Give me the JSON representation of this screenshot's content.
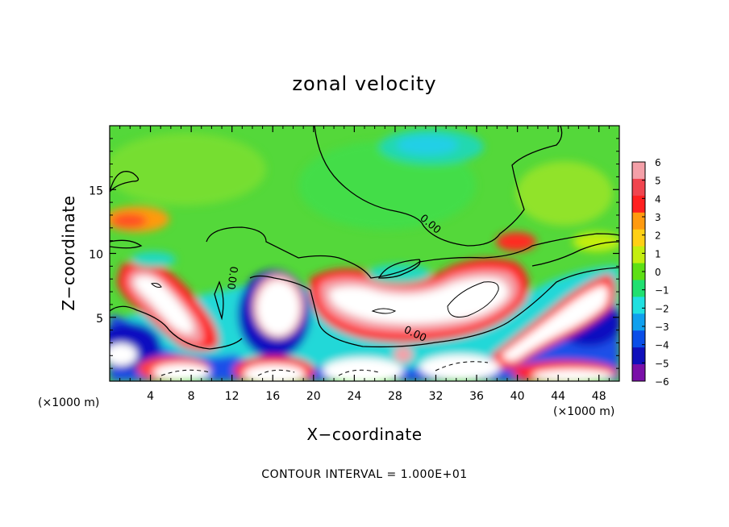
{
  "chart_data": {
    "type": "heatmap",
    "title": "zonal velocity",
    "xlabel": "X−coordinate",
    "ylabel": "Z−coordinate",
    "x_unit": "(×1000 m)",
    "y_unit": "(×1000 m)",
    "xlim": [
      0,
      50
    ],
    "ylim": [
      0,
      20
    ],
    "x_ticks": [
      4,
      8,
      12,
      16,
      20,
      24,
      28,
      32,
      36,
      40,
      44,
      48
    ],
    "y_ticks": [
      5,
      10,
      15
    ],
    "colorbar": {
      "min": -6,
      "max": 6,
      "ticks": [
        6,
        5,
        4,
        3,
        2,
        1,
        0,
        -1,
        -2,
        -3,
        -4,
        -5,
        -6
      ],
      "tick_labels": [
        "6",
        "5",
        "4",
        "3",
        "2",
        "1",
        "0",
        "−1",
        "−2",
        "−3",
        "−4",
        "−5",
        "−6"
      ],
      "colors": [
        "#f4a0a8",
        "#f0454f",
        "#ff2020",
        "#ff9a10",
        "#ffd015",
        "#c4ee10",
        "#5ee015",
        "#20e070",
        "#20e0e0",
        "#10a0ee",
        "#0a4ee8",
        "#1010bb",
        "#7a10a8"
      ]
    },
    "contour_interval": 10,
    "contour_labels": [
      "0.00",
      "0.00",
      "0.00"
    ],
    "footer": "CONTOUR INTERVAL = 1.000E+01",
    "field_features": [
      {
        "kind": "positive",
        "x": [
          0.5,
          10
        ],
        "z": [
          2,
          9.5
        ]
      },
      {
        "kind": "positive",
        "x": [
          0.5,
          7
        ],
        "z": [
          12,
          14
        ]
      },
      {
        "kind": "positive",
        "x": [
          20,
          41
        ],
        "z": [
          3.5,
          9.5
        ]
      },
      {
        "kind": "positive",
        "x": [
          14,
          19
        ],
        "z": [
          0,
          2.5
        ]
      },
      {
        "kind": "positive",
        "x": [
          40,
          50
        ],
        "z": [
          0,
          2
        ]
      },
      {
        "kind": "positive",
        "x": [
          44,
          50
        ],
        "z": [
          13,
          15.5
        ]
      },
      {
        "kind": "negative",
        "x": [
          14,
          20
        ],
        "z": [
          2,
          8.5
        ]
      },
      {
        "kind": "negative",
        "x": [
          0,
          12
        ],
        "z": [
          0,
          5
        ]
      },
      {
        "kind": "negative",
        "x": [
          38,
          50
        ],
        "z": [
          1.5,
          8.5
        ]
      },
      {
        "kind": "negative",
        "x": [
          27,
          34
        ],
        "z": [
          17,
          19.5
        ]
      },
      {
        "kind": "negative",
        "x": [
          26,
          31
        ],
        "z": [
          8.5,
          10.5
        ]
      }
    ]
  }
}
